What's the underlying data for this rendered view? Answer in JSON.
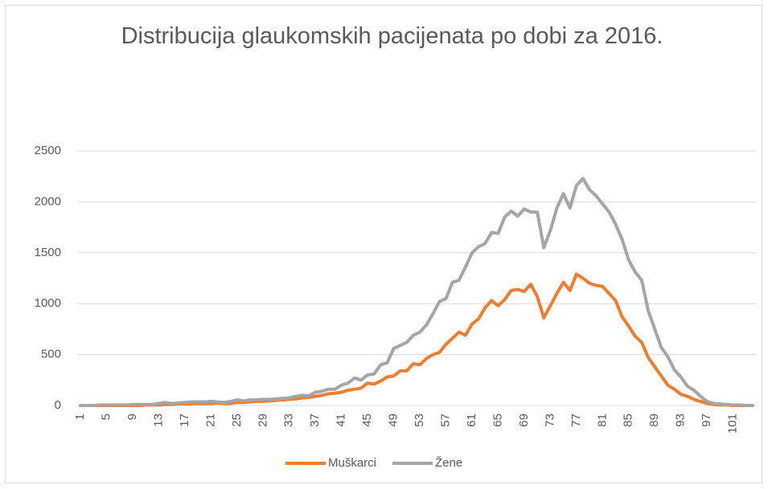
{
  "chart_data": {
    "type": "line",
    "title": "Distribucija glaukomskih pacijenata po dobi za 2016.",
    "categories": [
      1,
      null,
      null,
      null,
      5,
      null,
      null,
      null,
      9,
      null,
      null,
      null,
      13,
      null,
      null,
      null,
      17,
      null,
      null,
      null,
      21,
      null,
      null,
      null,
      25,
      null,
      null,
      null,
      29,
      null,
      null,
      null,
      33,
      null,
      null,
      null,
      37,
      null,
      null,
      null,
      41,
      null,
      null,
      null,
      45,
      null,
      null,
      null,
      49,
      null,
      null,
      null,
      53,
      null,
      null,
      null,
      57,
      null,
      null,
      null,
      61,
      null,
      null,
      null,
      65,
      null,
      null,
      null,
      69,
      null,
      null,
      null,
      73,
      null,
      null,
      null,
      77,
      null,
      null,
      null,
      81,
      null,
      null,
      null,
      85,
      null,
      null,
      null,
      89,
      null,
      null,
      null,
      93,
      null,
      null,
      null,
      97,
      null,
      null,
      null,
      101,
      null,
      null,
      null
    ],
    "series": [
      {
        "name": "Muškarci",
        "color": "#ed7d31",
        "values": [
          0,
          0,
          0,
          0,
          0,
          0,
          0,
          0,
          0,
          0,
          5,
          5,
          5,
          10,
          10,
          15,
          15,
          20,
          20,
          20,
          20,
          25,
          20,
          20,
          30,
          30,
          35,
          40,
          40,
          45,
          50,
          55,
          60,
          65,
          75,
          80,
          90,
          100,
          115,
          120,
          130,
          150,
          160,
          170,
          220,
          210,
          240,
          280,
          290,
          340,
          340,
          410,
          400,
          460,
          500,
          520,
          600,
          660,
          720,
          690,
          800,
          850,
          960,
          1030,
          980,
          1040,
          1130,
          1140,
          1120,
          1190,
          1070,
          860,
          980,
          1100,
          1210,
          1130,
          1290,
          1250,
          1200,
          1180,
          1170,
          1100,
          1030,
          870,
          780,
          680,
          620,
          470,
          380,
          290,
          200,
          160,
          110,
          90,
          60,
          40,
          20,
          10,
          5,
          5,
          0,
          0,
          0,
          0
        ]
      },
      {
        "name": "Žene",
        "color": "#a5a5a5",
        "values": [
          0,
          0,
          0,
          5,
          5,
          5,
          5,
          5,
          10,
          10,
          10,
          10,
          20,
          30,
          20,
          25,
          30,
          35,
          35,
          35,
          40,
          35,
          30,
          40,
          55,
          45,
          55,
          55,
          60,
          60,
          65,
          70,
          75,
          90,
          100,
          95,
          130,
          140,
          160,
          160,
          200,
          220,
          270,
          250,
          300,
          310,
          400,
          420,
          560,
          590,
          620,
          690,
          720,
          790,
          900,
          1020,
          1050,
          1210,
          1230,
          1360,
          1500,
          1560,
          1590,
          1700,
          1690,
          1850,
          1910,
          1860,
          1930,
          1900,
          1900,
          1550,
          1720,
          1940,
          2080,
          1940,
          2160,
          2230,
          2120,
          2060,
          1980,
          1900,
          1780,
          1630,
          1430,
          1310,
          1230,
          930,
          750,
          570,
          480,
          350,
          280,
          190,
          150,
          90,
          40,
          20,
          15,
          10,
          5,
          5,
          0,
          0
        ]
      }
    ],
    "ylim": [
      0,
      2500
    ],
    "yticks": [
      0,
      500,
      1000,
      1500,
      2000,
      2500
    ],
    "grid": true,
    "legend": "bottom"
  }
}
